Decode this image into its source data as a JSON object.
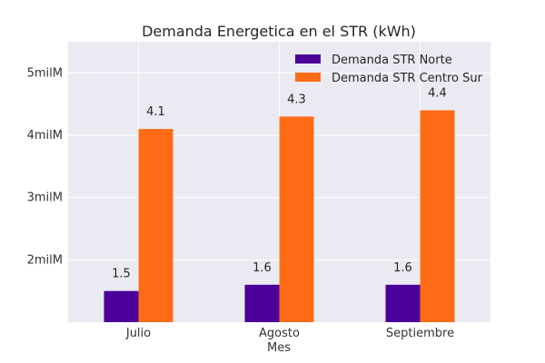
{
  "chart_data": {
    "type": "bar",
    "title": "Demanda Energetica en el STR (kWh)",
    "xlabel": "Mes",
    "ylabel": "",
    "categories": [
      "Julio",
      "Agosto",
      "Septiembre"
    ],
    "series": [
      {
        "name": "Demanda STR Norte",
        "values": [
          1.5,
          1.6,
          1.6
        ],
        "labels": [
          "1.5",
          "1.6",
          "1.6"
        ],
        "color": "#4b0099"
      },
      {
        "name": "Demanda STR Centro Sur",
        "values": [
          4.1,
          4.3,
          4.4
        ],
        "labels": [
          "4.1",
          "4.3",
          "4.4"
        ],
        "color": "#ff6b17"
      }
    ],
    "ylim": [
      1,
      5.5
    ],
    "yticks": [
      {
        "value": 2,
        "label": "2milM"
      },
      {
        "value": 3,
        "label": "3milM"
      },
      {
        "value": 4,
        "label": "4milM"
      },
      {
        "value": 5,
        "label": "5milM"
      }
    ],
    "grid": true,
    "legend_position": "top-right",
    "background_color": "#eaeaf2",
    "grid_color": "#ffffff"
  }
}
